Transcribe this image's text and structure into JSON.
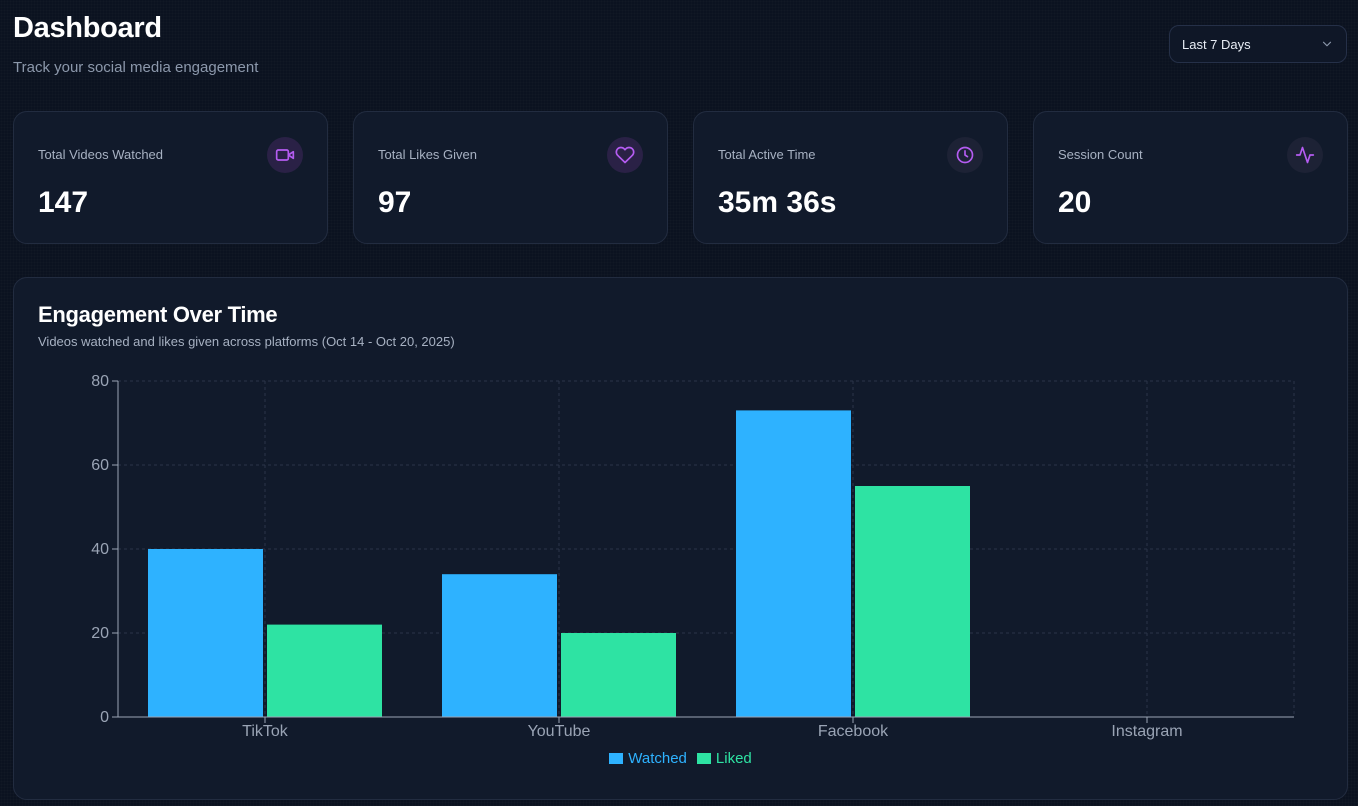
{
  "header": {
    "title": "Dashboard",
    "subtitle": "Track your social media engagement"
  },
  "range_select": {
    "value": "Last 7 Days"
  },
  "stats": [
    {
      "label": "Total Videos Watched",
      "value": "147",
      "icon": "video-icon"
    },
    {
      "label": "Total Likes Given",
      "value": "97",
      "icon": "heart-icon"
    },
    {
      "label": "Total Active Time",
      "value": "35m 36s",
      "icon": "clock-icon"
    },
    {
      "label": "Session Count",
      "value": "20",
      "icon": "activity-icon"
    }
  ],
  "chart": {
    "title": "Engagement Over Time",
    "subtitle": "Videos watched and likes given across platforms (Oct 14 - Oct 20, 2025)"
  },
  "colors": {
    "watched": "#2eb2ff",
    "liked": "#2ee3a3",
    "icon_accent": "#b55cf2"
  },
  "chart_data": {
    "type": "bar",
    "categories": [
      "TikTok",
      "YouTube",
      "Facebook",
      "Instagram"
    ],
    "series": [
      {
        "name": "Watched",
        "values": [
          40,
          34,
          73,
          0
        ]
      },
      {
        "name": "Liked",
        "values": [
          22,
          20,
          55,
          0
        ]
      }
    ],
    "ylim": [
      0,
      80
    ],
    "yticks": [
      0,
      20,
      40,
      60,
      80
    ],
    "grid": true,
    "legend": "bottom-center"
  }
}
